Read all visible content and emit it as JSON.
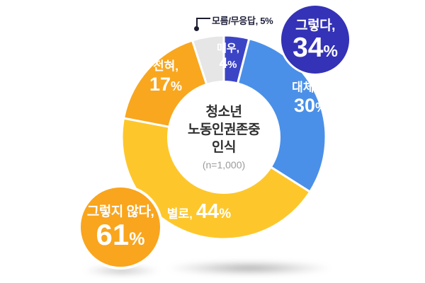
{
  "percent_sign": "%",
  "background": "#FFFFFF",
  "chart_data": {
    "type": "donut",
    "title_lines": [
      "청소년",
      "노동인권존중",
      "인식"
    ],
    "sample_note": "(n=1,000)",
    "unit": "%",
    "legend_position": "in-slice labels",
    "segments": [
      {
        "id": "very",
        "label": "매우,",
        "value": 4,
        "display": "4%",
        "color": "#3C44C6",
        "text_color": "#FFFFFF"
      },
      {
        "id": "mostly",
        "label": "대체로,",
        "value": 30,
        "display": "30%",
        "color": "#4A90E8",
        "text_color": "#FFFFFF"
      },
      {
        "id": "not-really",
        "label": "별로,",
        "value": 44,
        "display": "44%",
        "color": "#FDC72C",
        "text_color": "#FFFFFF"
      },
      {
        "id": "not-at-all",
        "label": "전혀,",
        "value": 17,
        "display": "17%",
        "color": "#F8A71F",
        "text_color": "#FFFFFF"
      },
      {
        "id": "dont-know",
        "label": "모름/무응답,",
        "value": 5,
        "display": "5%",
        "color": "#E6E6E6",
        "text_color": "#23233E"
      }
    ],
    "callout_label": "모름/무응답, 5%",
    "summary": [
      {
        "id": "agree",
        "label": "그렇다,",
        "value": 34,
        "display": "34%",
        "color": "#3432B6"
      },
      {
        "id": "disagree",
        "label": "그렇지 않다,",
        "value": 61,
        "display": "61%",
        "color": "#F9A51D"
      }
    ]
  }
}
